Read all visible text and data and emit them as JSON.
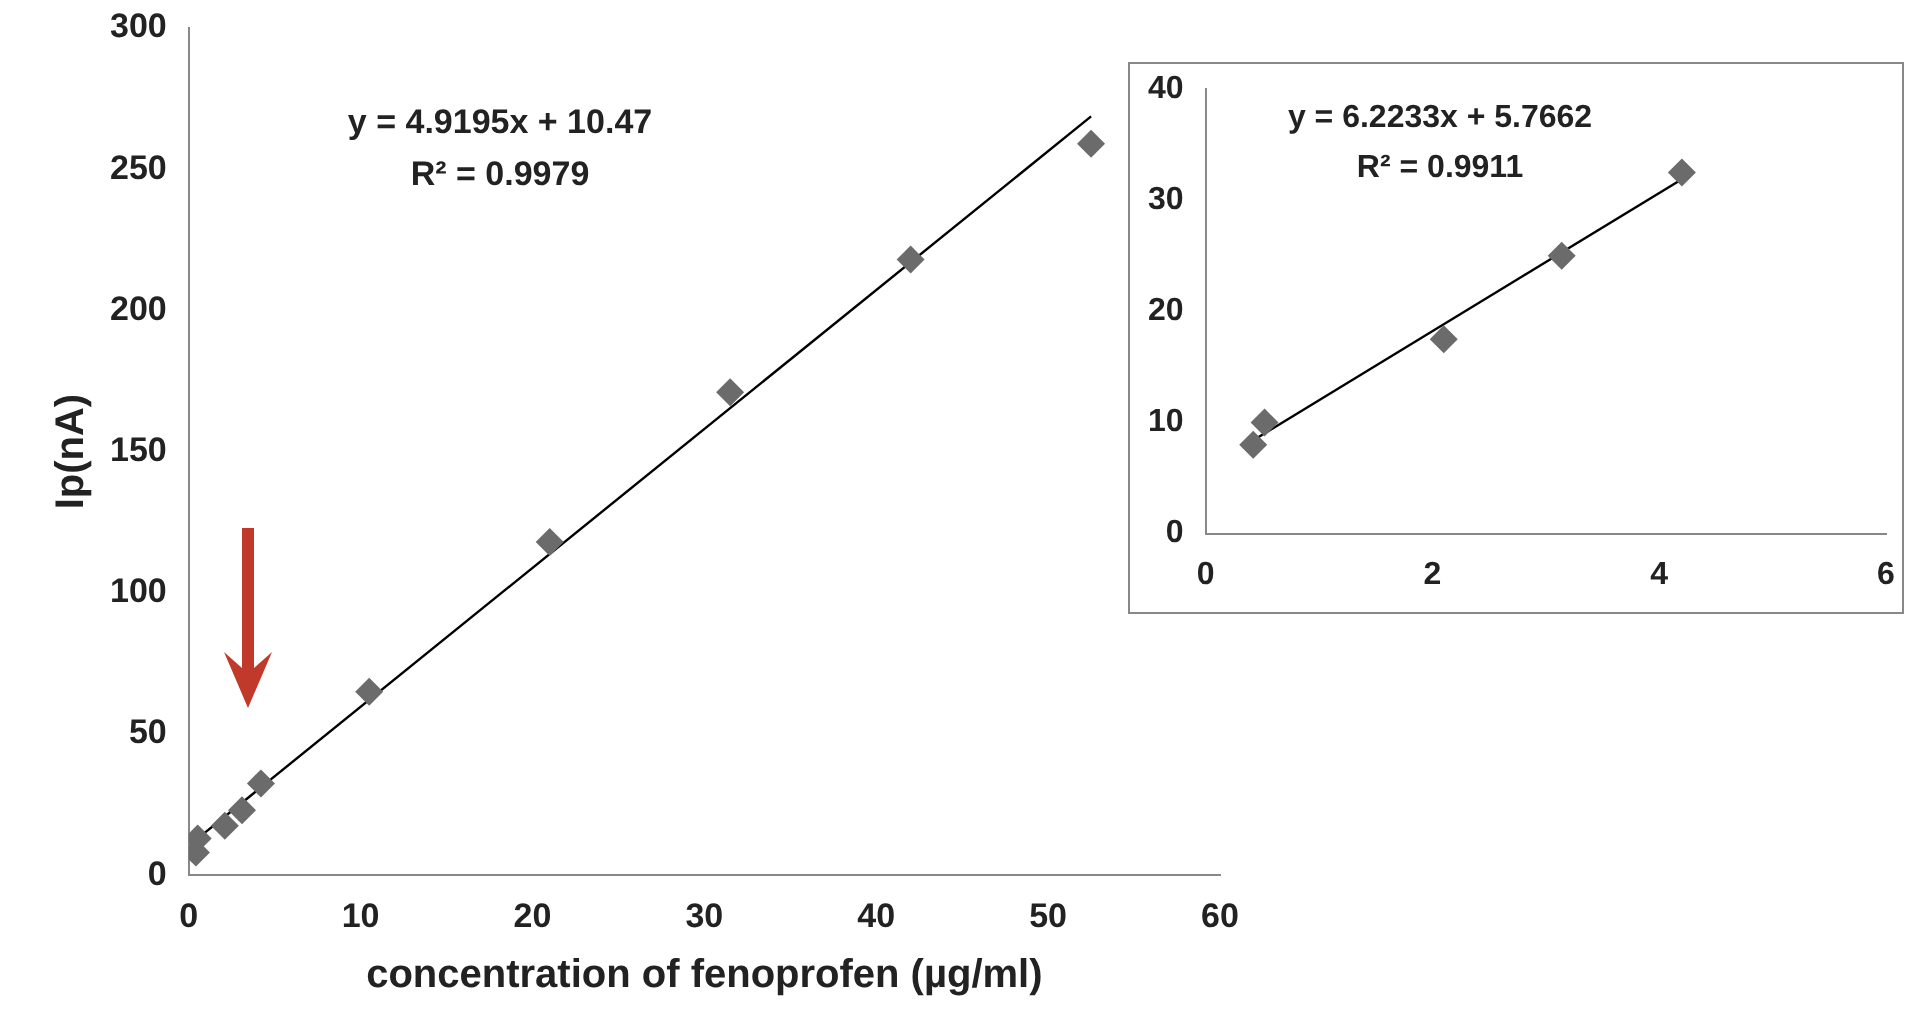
{
  "chart_data": [
    {
      "type": "scatter",
      "xlabel": "concentration of fenoprofen (µg/ml)",
      "ylabel": "Ip(nA)",
      "xlim": [
        0,
        60
      ],
      "xticks": [
        0,
        10,
        20,
        30,
        40,
        50,
        60
      ],
      "ylim": [
        0,
        300
      ],
      "yticks": [
        0,
        50,
        100,
        150,
        200,
        250,
        300
      ],
      "grid": false,
      "legend": false,
      "annotations": [
        "y = 4.9195x + 10.47",
        "R² = 0.9979"
      ],
      "series": [
        {
          "type": "scatter",
          "marker": "diamond",
          "color": "#6b6b6b",
          "x": [
            0.42,
            0.52,
            2.1,
            3.1,
            4.2,
            10.5,
            21,
            31.5,
            42,
            52.5
          ],
          "values": [
            8,
            13,
            17.5,
            23,
            32.5,
            65,
            118,
            171,
            218,
            259
          ]
        },
        {
          "type": "line",
          "color": "#000000",
          "line_style": "solid",
          "x": [
            0.42,
            52.5
          ],
          "values": [
            12.5,
            268.7
          ]
        }
      ]
    },
    {
      "type": "scatter",
      "xlim": [
        0,
        6
      ],
      "xticks": [
        0,
        2,
        4,
        6
      ],
      "ylim": [
        0,
        40
      ],
      "yticks": [
        0,
        10,
        20,
        30,
        40
      ],
      "grid": false,
      "legend": false,
      "annotations": [
        "y = 6.2233x + 5.7662",
        "R² = 0.9911"
      ],
      "series": [
        {
          "type": "scatter",
          "marker": "diamond",
          "color": "#6b6b6b",
          "x": [
            0.42,
            0.52,
            2.1,
            3.14,
            4.2
          ],
          "values": [
            8,
            10,
            17.5,
            25,
            32.5
          ]
        },
        {
          "type": "line",
          "color": "#000000",
          "line_style": "solid",
          "x": [
            0.42,
            4.2
          ],
          "values": [
            8.4,
            31.9
          ]
        }
      ]
    }
  ]
}
